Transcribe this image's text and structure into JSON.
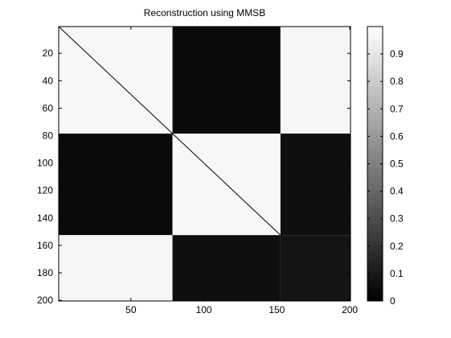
{
  "chart_data": {
    "type": "heatmap",
    "title": "Reconstruction using MMSB",
    "xlabel": "",
    "ylabel": "",
    "grid": false,
    "x_range": [
      1,
      200
    ],
    "y_range": [
      1,
      200
    ],
    "x_ticks": [
      50,
      100,
      150,
      200
    ],
    "y_ticks": [
      20,
      40,
      60,
      80,
      100,
      120,
      140,
      160,
      180,
      200
    ],
    "colorscale": "gray",
    "color_range": [
      0,
      1
    ],
    "colorbar_ticks": [
      0,
      0.1,
      0.2,
      0.3,
      0.4,
      0.5,
      0.6,
      0.7,
      0.8,
      0.9
    ],
    "colorbar_tick_labels": [
      "0",
      "0.1",
      "0.2",
      "0.3",
      "0.4",
      "0.5",
      "0.6",
      "0.7",
      "0.8",
      "0.9"
    ],
    "diagonal_value": 0.0,
    "blocks": [
      {
        "rows": [
          1,
          78
        ],
        "cols": [
          1,
          78
        ],
        "value": 0.97
      },
      {
        "rows": [
          1,
          78
        ],
        "cols": [
          79,
          152
        ],
        "value": 0.04
      },
      {
        "rows": [
          1,
          78
        ],
        "cols": [
          153,
          200
        ],
        "value": 0.96
      },
      {
        "rows": [
          79,
          152
        ],
        "cols": [
          1,
          78
        ],
        "value": 0.04
      },
      {
        "rows": [
          79,
          152
        ],
        "cols": [
          79,
          152
        ],
        "value": 0.97
      },
      {
        "rows": [
          79,
          152
        ],
        "cols": [
          153,
          200
        ],
        "value": 0.06
      },
      {
        "rows": [
          153,
          200
        ],
        "cols": [
          1,
          78
        ],
        "value": 0.96
      },
      {
        "rows": [
          153,
          200
        ],
        "cols": [
          79,
          152
        ],
        "value": 0.06
      },
      {
        "rows": [
          153,
          200
        ],
        "cols": [
          153,
          200
        ],
        "value": 0.08
      }
    ]
  }
}
